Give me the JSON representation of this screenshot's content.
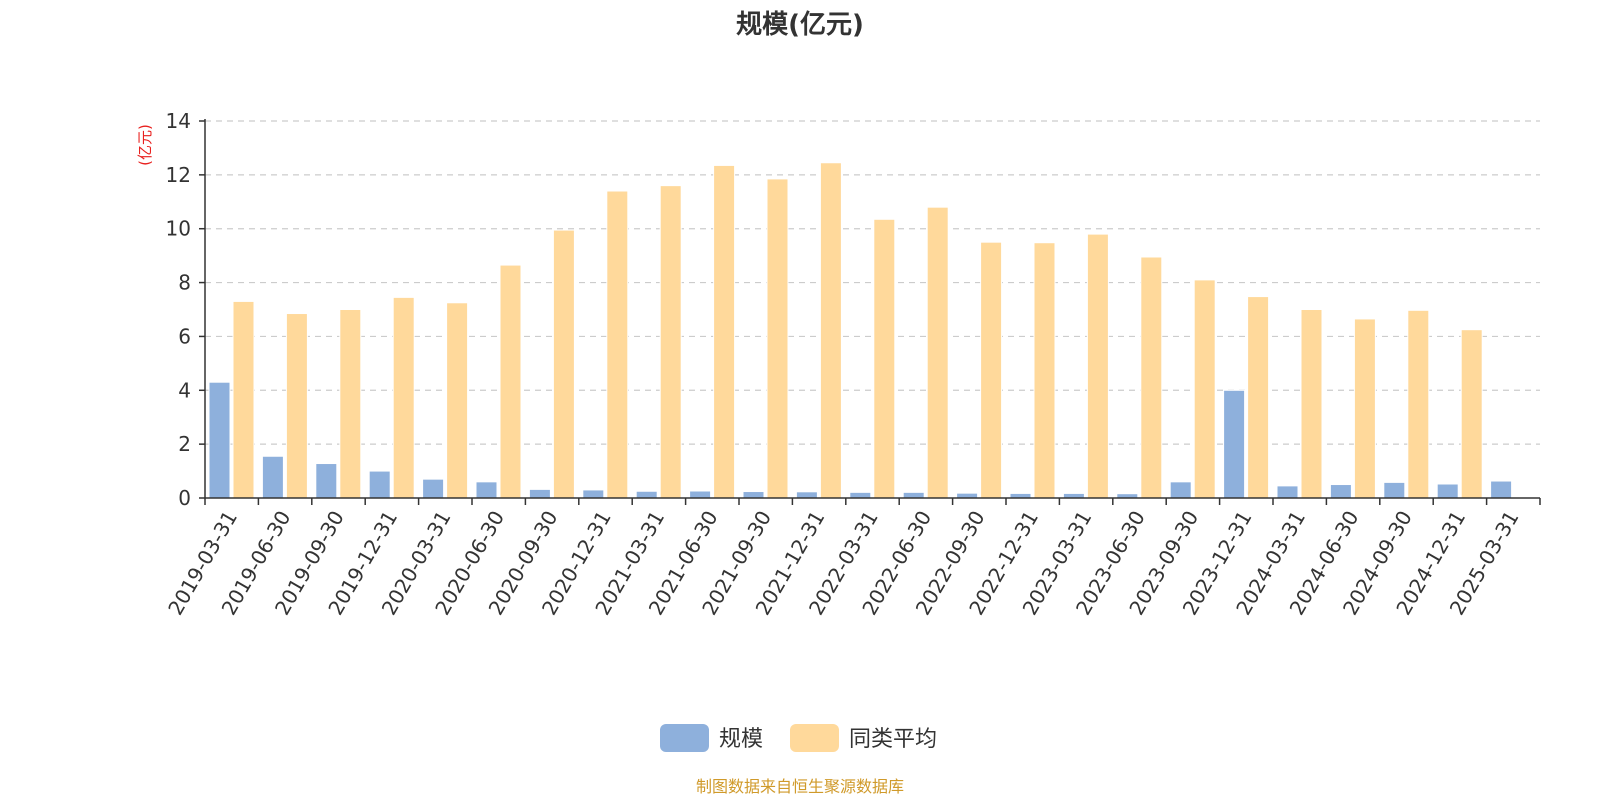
{
  "colors": {
    "series_1": "#8eb0dc",
    "series_2": "#ffd99b",
    "ylabel": "#e8201e",
    "source": "#d09a2a",
    "axis": "#333333",
    "grid": "#cccccc"
  },
  "source_note": "制图数据来自恒生聚源数据库",
  "chart_data": {
    "type": "bar",
    "title": "规模(亿元)",
    "xlabel": "",
    "ylabel": "(亿元)",
    "ylim": [
      0,
      14
    ],
    "yticks": [
      "0",
      "2",
      "4",
      "6",
      "8",
      "10",
      "12",
      "14"
    ],
    "grid": true,
    "legend_position": "bottom-center",
    "categories": [
      "2019-03-31",
      "2019-06-30",
      "2019-09-30",
      "2019-12-31",
      "2020-03-31",
      "2020-06-30",
      "2020-09-30",
      "2020-12-31",
      "2021-03-31",
      "2021-06-30",
      "2021-09-30",
      "2021-12-31",
      "2022-03-31",
      "2022-06-30",
      "2022-09-30",
      "2022-12-31",
      "2023-03-31",
      "2023-06-30",
      "2023-09-30",
      "2023-12-31",
      "2024-03-31",
      "2024-06-30",
      "2024-09-30",
      "2024-12-31",
      "2025-03-31"
    ],
    "series": [
      {
        "name": "规模",
        "values": [
          4.3,
          1.55,
          1.28,
          1.0,
          0.7,
          0.6,
          0.32,
          0.3,
          0.25,
          0.26,
          0.24,
          0.23,
          0.21,
          0.21,
          0.18,
          0.17,
          0.17,
          0.16,
          0.6,
          4.0,
          0.45,
          0.5,
          0.58,
          0.52,
          0.63
        ]
      },
      {
        "name": "同类平均",
        "values": [
          7.3,
          6.85,
          7.0,
          7.45,
          7.25,
          8.65,
          9.95,
          11.4,
          11.6,
          12.35,
          11.85,
          12.45,
          10.35,
          10.8,
          9.5,
          9.48,
          9.8,
          8.95,
          8.1,
          7.48,
          7.0,
          6.65,
          6.97,
          6.25,
          null
        ]
      }
    ]
  }
}
